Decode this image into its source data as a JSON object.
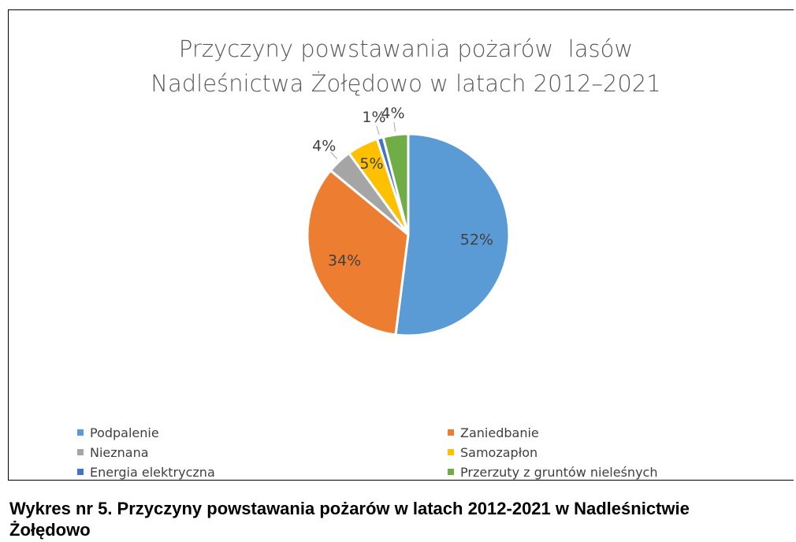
{
  "chart_data": {
    "type": "pie",
    "title": "Przyczyny powstawania pożarów  lasów Nadleśnictwa Żołędowo w latach 2012–2021",
    "categories": [
      "Podpalenie",
      "Zaniedbanie",
      "Nieznana",
      "Samozapłon",
      "Energia elektryczna",
      "Przerzuty z gruntów nieleśnych"
    ],
    "values": [
      52,
      34,
      4,
      5,
      1,
      4
    ],
    "value_labels": [
      "52%",
      "34%",
      "4%",
      "5%",
      "1%",
      "4%"
    ],
    "colors": [
      "#5b9bd5",
      "#ed7d31",
      "#a5a5a5",
      "#ffc000",
      "#4472c4",
      "#70ad47"
    ],
    "legend": "bottom",
    "caption": "Wykres nr 5. Przyczyny powstawania pożarów w latach 2012-2021 w Nadleśnictwie Żołędowo"
  }
}
